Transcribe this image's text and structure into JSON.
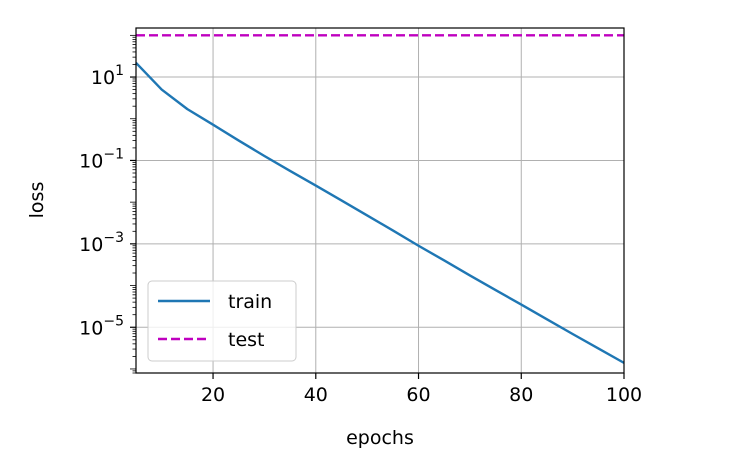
{
  "chart_data": {
    "type": "line",
    "xlabel": "epochs",
    "ylabel": "loss",
    "xlim": [
      5,
      100
    ],
    "ylim": [
      8e-07,
      150
    ],
    "yscale": "log",
    "grid": true,
    "legend_position": "lower-left",
    "x_ticks": [
      20,
      40,
      60,
      80,
      100
    ],
    "y_ticks": [
      {
        "value": 10,
        "base": "10",
        "exp": "1"
      },
      {
        "value": 0.1,
        "base": "10",
        "exp": "−1"
      },
      {
        "value": 0.001,
        "base": "10",
        "exp": "−3"
      },
      {
        "value": 1e-05,
        "base": "10",
        "exp": "−5"
      }
    ],
    "series": [
      {
        "name": "train",
        "color": "#1f77b4",
        "dash": "solid",
        "x": [
          5,
          10,
          15,
          20,
          25,
          30,
          35,
          40,
          45,
          50,
          55,
          60,
          65,
          70,
          75,
          80,
          85,
          90,
          95,
          100
        ],
        "y": [
          22,
          5,
          1.7,
          0.72,
          0.3,
          0.128,
          0.056,
          0.025,
          0.011,
          0.0048,
          0.0021,
          0.0009,
          0.0004,
          0.000175,
          7.8e-05,
          3.5e-05,
          1.55e-05,
          6.9e-06,
          3.1e-06,
          1.4e-06
        ]
      },
      {
        "name": "test",
        "color": "#bf00bf",
        "dash": "dashed",
        "x": [
          5,
          100
        ],
        "y": [
          100,
          100
        ]
      }
    ]
  }
}
